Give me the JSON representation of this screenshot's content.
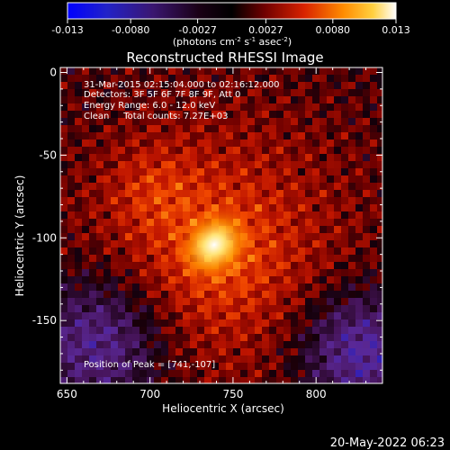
{
  "colorbar": {
    "ticks": [
      "-0.013",
      "-0.0080",
      "-0.0027",
      "0.0027",
      "0.0080",
      "0.013"
    ],
    "units_main": "(photons cm",
    "units_exp1": "-2",
    "units_mid": " s",
    "units_exp2": "-1",
    "units_mid2": " asec",
    "units_exp3": "-2",
    "units_end": ")"
  },
  "chart_data": {
    "type": "heatmap",
    "title": "Reconstructed RHESSI Image",
    "xlabel": "Heliocentric X (arcsec)",
    "ylabel": "Heliocentric Y (arcsec)",
    "xlim": [
      646,
      840
    ],
    "ylim": [
      -188,
      3
    ],
    "x_ticks": [
      650,
      700,
      750,
      800
    ],
    "y_ticks": [
      0,
      -50,
      -100,
      -150
    ],
    "peak": {
      "x": 741,
      "y": -107
    },
    "value_range": [
      -0.013,
      0.013
    ],
    "annotations": [
      "31-Mar-2015 02:15:04.000 to 02:16:12.000",
      "Detectors: 3F 5F 6F 7F 8F 9F, Att 0",
      "Energy Range: 6.0 - 12.0 keV",
      "Clean     Total counts: 7.27E+03"
    ],
    "peak_label": "Position of Peak = [741,-107]"
  },
  "footer": {
    "timestamp": "20-May-2022 06:23"
  }
}
